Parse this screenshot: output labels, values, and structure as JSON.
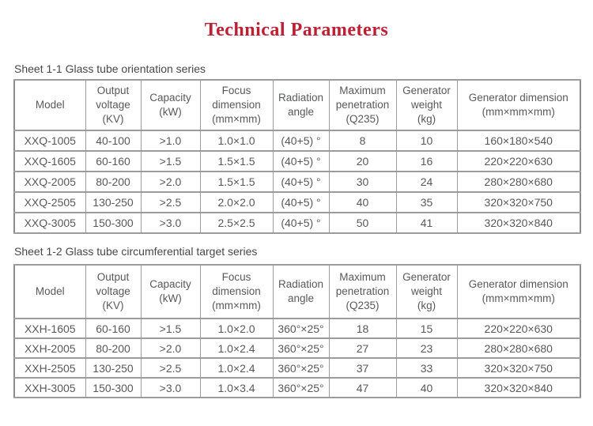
{
  "page": {
    "title": "Technical Parameters",
    "title_color": "#bd2033",
    "text_color": "#58595a",
    "border_color": "#9c9c9c"
  },
  "tables": [
    {
      "caption": "Sheet 1-1 Glass tube orientation series",
      "headers": [
        "Model",
        "Output\nvoltage\n(KV)",
        "Capacity\n(kW)",
        "Focus\ndimension\n(mm×mm)",
        "Radiation\nangle",
        "Maximum\npenetration\n(Q235)",
        "Generator\nweight\n(kg)",
        "Generator dimension\n(mm×mm×mm)"
      ],
      "rows": [
        [
          "XXQ-1005",
          "40-100",
          ">1.0",
          "1.0×1.0",
          "(40+5) °",
          "8",
          "10",
          "160×180×540"
        ],
        [
          "XXQ-1605",
          "60-160",
          ">1.5",
          "1.5×1.5",
          "(40+5) °",
          "20",
          "16",
          "220×220×630"
        ],
        [
          "XXQ-2005",
          "80-200",
          ">2.0",
          "1.5×1.5",
          "(40+5) °",
          "30",
          "24",
          "280×280×680"
        ],
        [
          "XXQ-2505",
          "130-250",
          ">2.5",
          "2.0×2.0",
          "(40+5) °",
          "40",
          "35",
          "320×320×750"
        ],
        [
          "XXQ-3005",
          "150-300",
          ">3.0",
          "2.5×2.5",
          "(40+5) °",
          "50",
          "41",
          "320×320×840"
        ]
      ]
    },
    {
      "caption": "Sheet 1-2 Glass tube circumferential target series",
      "headers": [
        "Model",
        "Output\nvoltage\n(KV)",
        "Capacity\n(kW)",
        "Focus\ndimension\n(mm×mm)",
        "Radiation\nangle",
        "Maximum\npenetration\n(Q235)",
        "Generator\nweight\n(kg)",
        "Generator dimension\n(mm×mm×mm)"
      ],
      "rows": [
        [
          "XXH-1605",
          "60-160",
          ">1.5",
          "1.0×2.0",
          "360°×25°",
          "18",
          "15",
          "220×220×630"
        ],
        [
          "XXH-2005",
          "80-200",
          ">2.0",
          "1.0×2.4",
          "360°×25°",
          "27",
          "23",
          "280×280×680"
        ],
        [
          "XXH-2505",
          "130-250",
          ">2.5",
          "1.0×2.4",
          "360°×25°",
          "37",
          "33",
          "320×320×750"
        ],
        [
          "XXH-3005",
          "150-300",
          ">3.0",
          "1.0×3.4",
          "360°×25°",
          "47",
          "40",
          "320×320×840"
        ]
      ]
    }
  ]
}
